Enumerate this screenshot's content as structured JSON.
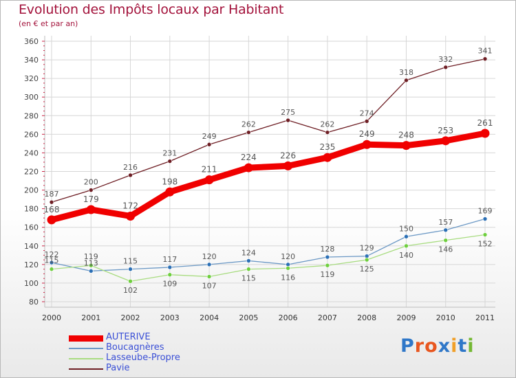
{
  "title": "Evolution des Impôts locaux par Habitant",
  "subtitle": "(en € et par an)",
  "logo": {
    "text": "Proxiti",
    "letters": [
      "P",
      "r",
      "o",
      "x",
      "i",
      "t",
      "i"
    ],
    "colors": [
      "#2f77c8",
      "#e8561f",
      "#e8561f",
      "#2f77c8",
      "#f0a02a",
      "#2f77c8",
      "#74b833"
    ]
  },
  "chart_data": {
    "type": "line",
    "title": "Evolution des Impôts locaux par Habitant",
    "subtitle": "(en € et par an)",
    "xlabel": "",
    "ylabel": "",
    "x": [
      "2000",
      "2001",
      "2002",
      "2003",
      "2004",
      "2005",
      "2006",
      "2007",
      "2008",
      "2009",
      "2010",
      "2011"
    ],
    "yticks": [
      80,
      100,
      120,
      140,
      160,
      180,
      200,
      220,
      240,
      260,
      280,
      300,
      320,
      340,
      360
    ],
    "ylim": [
      80,
      360
    ],
    "grid": true,
    "series": [
      {
        "name": "AUTERIVE",
        "color": "#f00000",
        "values": [
          168,
          179,
          172,
          198,
          211,
          224,
          226,
          235,
          249,
          248,
          253,
          261
        ],
        "labels": [
          "168",
          "179",
          "172",
          "198",
          "211",
          "224",
          "226",
          "235",
          "249",
          "248",
          "253",
          "261"
        ]
      },
      {
        "name": "Boucagnères",
        "color": "#6b98c5",
        "values": [
          122,
          113,
          115,
          117,
          120,
          124,
          120,
          128,
          129,
          150,
          157,
          169
        ],
        "labels": [
          "122",
          "113",
          "115",
          "117",
          "120",
          "124",
          "120",
          "128",
          "129",
          "150",
          "157",
          "169"
        ]
      },
      {
        "name": "Lasseube-Propre",
        "color": "#a8dc80",
        "values": [
          115,
          119,
          102,
          109,
          107,
          115,
          116,
          119,
          125,
          140,
          146,
          152
        ],
        "labels": [
          "115",
          "119",
          "102",
          "109",
          "107",
          "115",
          "116",
          "119",
          "125",
          "140",
          "146",
          "152"
        ]
      },
      {
        "name": "Pavie",
        "color": "#6e1e24",
        "values": [
          187,
          200,
          216,
          231,
          249,
          262,
          275,
          262,
          274,
          318,
          332,
          341
        ],
        "labels": [
          "187",
          "200",
          "216",
          "231",
          "249",
          "262",
          "275",
          "262",
          "274",
          "318",
          "332",
          "341"
        ]
      }
    ]
  }
}
